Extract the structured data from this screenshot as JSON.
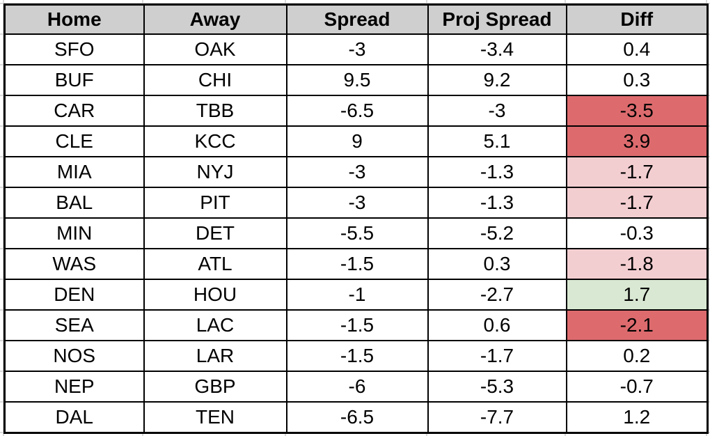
{
  "table": {
    "columns": [
      "Home",
      "Away",
      "Spread",
      "Proj Spread",
      "Diff"
    ],
    "rows": [
      {
        "home": "SFO",
        "away": "OAK",
        "spread": "-3",
        "proj_spread": "-3.4",
        "diff": "0.4",
        "diff_highlight": "none"
      },
      {
        "home": "BUF",
        "away": "CHI",
        "spread": "9.5",
        "proj_spread": "9.2",
        "diff": "0.3",
        "diff_highlight": "none"
      },
      {
        "home": "CAR",
        "away": "TBB",
        "spread": "-6.5",
        "proj_spread": "-3",
        "diff": "-3.5",
        "diff_highlight": "red"
      },
      {
        "home": "CLE",
        "away": "KCC",
        "spread": "9",
        "proj_spread": "5.1",
        "diff": "3.9",
        "diff_highlight": "red"
      },
      {
        "home": "MIA",
        "away": "NYJ",
        "spread": "-3",
        "proj_spread": "-1.3",
        "diff": "-1.7",
        "diff_highlight": "pink"
      },
      {
        "home": "BAL",
        "away": "PIT",
        "spread": "-3",
        "proj_spread": "-1.3",
        "diff": "-1.7",
        "diff_highlight": "pink"
      },
      {
        "home": "MIN",
        "away": "DET",
        "spread": "-5.5",
        "proj_spread": "-5.2",
        "diff": "-0.3",
        "diff_highlight": "none"
      },
      {
        "home": "WAS",
        "away": "ATL",
        "spread": "-1.5",
        "proj_spread": "0.3",
        "diff": "-1.8",
        "diff_highlight": "pink"
      },
      {
        "home": "DEN",
        "away": "HOU",
        "spread": "-1",
        "proj_spread": "-2.7",
        "diff": "1.7",
        "diff_highlight": "green"
      },
      {
        "home": "SEA",
        "away": "LAC",
        "spread": "-1.5",
        "proj_spread": "0.6",
        "diff": "-2.1",
        "diff_highlight": "red"
      },
      {
        "home": "NOS",
        "away": "LAR",
        "spread": "-1.5",
        "proj_spread": "-1.7",
        "diff": "0.2",
        "diff_highlight": "none"
      },
      {
        "home": "NEP",
        "away": "GBP",
        "spread": "-6",
        "proj_spread": "-5.3",
        "diff": "-0.7",
        "diff_highlight": "none"
      },
      {
        "home": "DAL",
        "away": "TEN",
        "spread": "-6.5",
        "proj_spread": "-7.7",
        "diff": "1.2",
        "diff_highlight": "none"
      }
    ]
  },
  "colors": {
    "header_bg": "#cfcfcf",
    "cell_bg": "#ffffff",
    "border": "#000000",
    "gridline": "#d9d9d9",
    "diff_strong_red": "#dd6b6e",
    "diff_light_pink": "#f3ced1",
    "diff_light_green": "#d9e8d2"
  }
}
